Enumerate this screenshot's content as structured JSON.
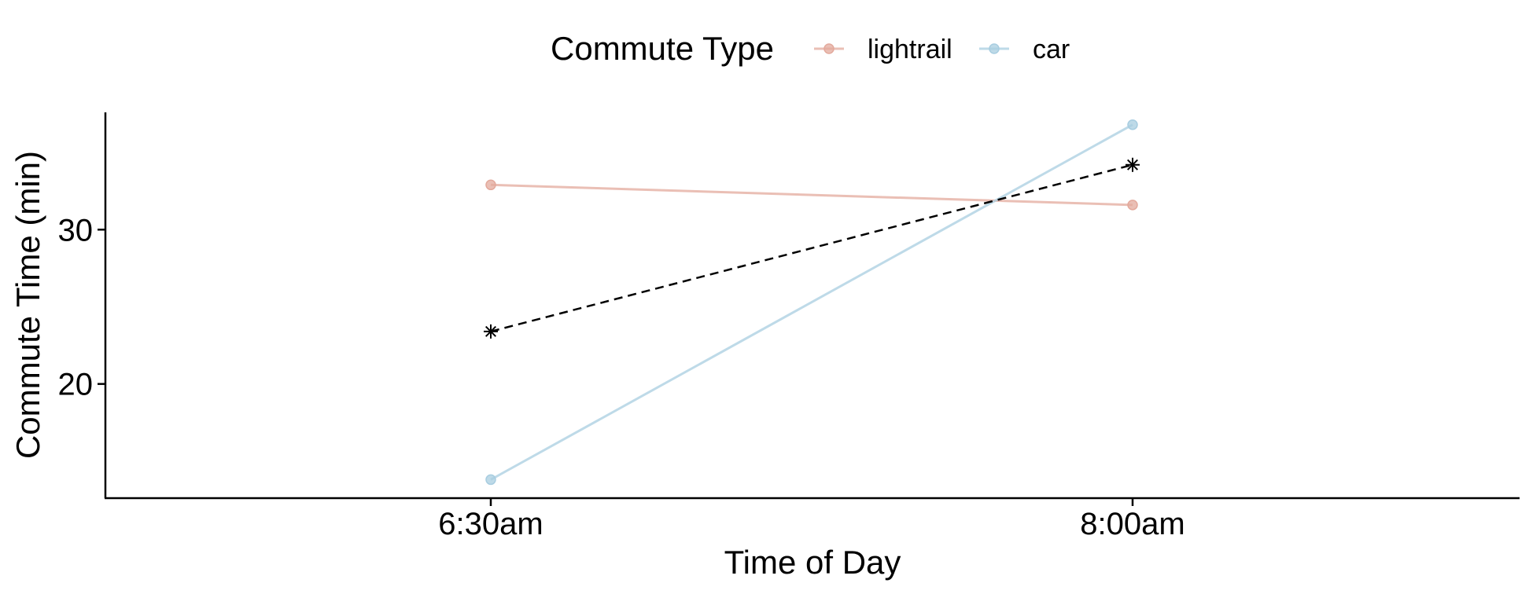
{
  "chart_data": {
    "type": "line",
    "xlabel": "Time of Day",
    "ylabel": "Commute Time (min)",
    "categories": [
      "6:30am",
      "8:00am"
    ],
    "yticks": [
      20,
      30
    ],
    "ylim": [
      12.6,
      37.6
    ],
    "legend": {
      "title": "Commute Type",
      "position": "top"
    },
    "series": [
      {
        "name": "lightrail",
        "values": [
          32.9,
          31.6
        ],
        "color": "#e3a99c",
        "marker": "circle"
      },
      {
        "name": "car",
        "values": [
          13.8,
          36.8
        ],
        "color": "#a8cde0",
        "marker": "circle"
      }
    ],
    "mean_line": {
      "values": [
        23.4,
        34.2
      ],
      "color": "#000000",
      "style": "dashed",
      "marker": "asterisk"
    }
  }
}
